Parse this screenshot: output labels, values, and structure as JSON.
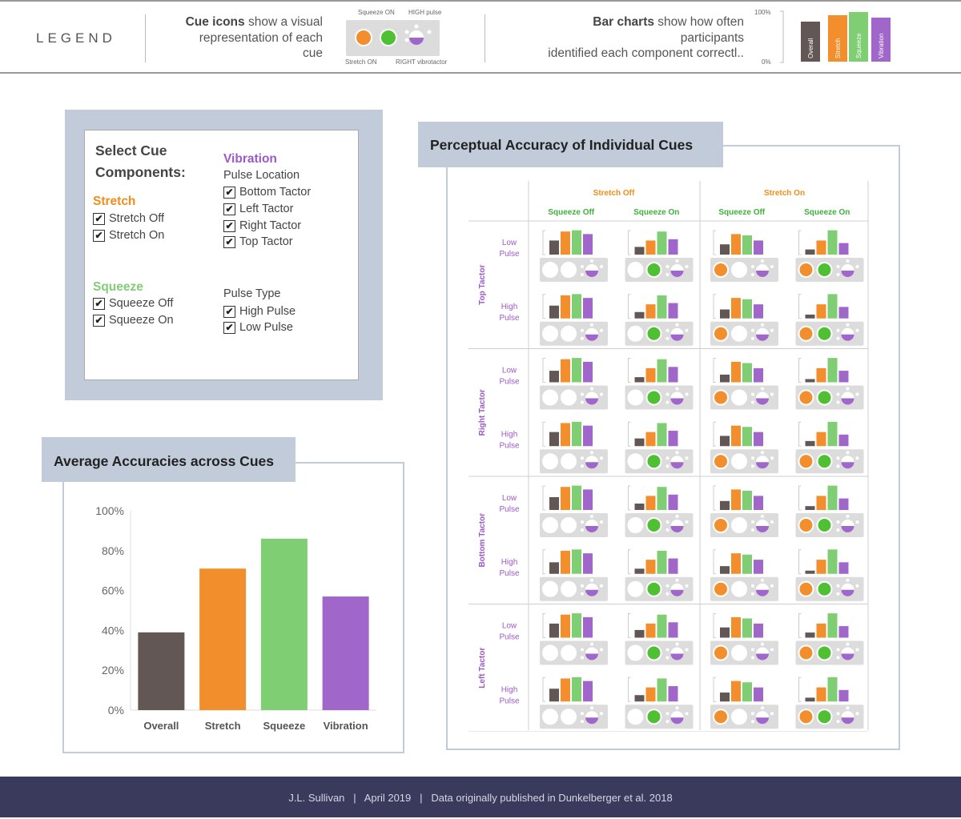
{
  "legend": {
    "title": "LEGEND",
    "cue_icons_bold": "Cue icons",
    "cue_icons_rest1": " show a visual",
    "cue_icons_line2": "representation of each",
    "cue_icons_line3": "cue",
    "example_labels": {
      "squeeze_on": "Squeeze ON",
      "high_pulse": "HIGH pulse",
      "stretch_on": "Stretch ON",
      "right_vibro": "RIGHT vibrotactor"
    },
    "bar_charts_bold": "Bar charts",
    "bar_charts_rest1": " show how often",
    "bar_charts_line2": "participants",
    "bar_charts_line3": "identified each component correctl..",
    "axis_top": "100%",
    "axis_bottom": "0%",
    "bar_labels": [
      "Overall",
      "Stretch",
      "Squeeze",
      "Vibration"
    ]
  },
  "filters": {
    "heading_line1": "Select Cue",
    "heading_line2": "Components:",
    "stretch": {
      "title": "Stretch",
      "options": [
        "Stretch Off",
        "Stretch On"
      ]
    },
    "squeeze": {
      "title": "Squeeze",
      "options": [
        "Squeeze Off",
        "Squeeze On"
      ]
    },
    "vibration": {
      "title": "Vibration",
      "location_title": "Pulse Location",
      "locations": [
        "Bottom Tactor",
        "Left Tactor",
        "Right Tactor",
        "Top Tactor"
      ],
      "type_title": "Pulse Type",
      "types": [
        "High Pulse",
        "Low Pulse"
      ]
    },
    "check_glyph": "✔"
  },
  "avg_panel": {
    "title": "Average Accuracies across Cues"
  },
  "cue_panel": {
    "title": "Perceptual Accuracy of Individual Cues",
    "col_groups": [
      "Stretch Off",
      "Stretch On"
    ],
    "col_subs": [
      "Squeeze Off",
      "Squeeze On",
      "Squeeze Off",
      "Squeeze On"
    ],
    "tactors": [
      "Top Tactor",
      "Right Tactor",
      "Bottom Tactor",
      "Left Tactor"
    ],
    "pulses": [
      [
        "Low",
        "Pulse"
      ],
      [
        "High",
        "Pulse"
      ]
    ]
  },
  "colors": {
    "overall": "#635755",
    "stretch": "#f28e2b",
    "squeeze": "#7fce74",
    "vibration": "#a066c9",
    "squeeze_icon": "#4ec032",
    "panel": "#c1cbd9",
    "footer": "#3a3a5c"
  },
  "chart_data": {
    "type": "bar",
    "title": "Average Accuracies across Cues",
    "categories": [
      "Overall",
      "Stretch",
      "Squeeze",
      "Vibration"
    ],
    "values": [
      39,
      71,
      86,
      57
    ],
    "ylim": [
      0,
      100
    ],
    "yticks": [
      "0%",
      "20%",
      "40%",
      "60%",
      "80%",
      "100%"
    ],
    "xlabel": "",
    "ylabel": "",
    "colors": [
      "#635755",
      "#f28e2b",
      "#7fce74",
      "#a066c9"
    ]
  },
  "footer": {
    "text": "J.L. Sullivan   |   April 2019   |   Data originally published in Dunkelberger et al. 2018"
  }
}
